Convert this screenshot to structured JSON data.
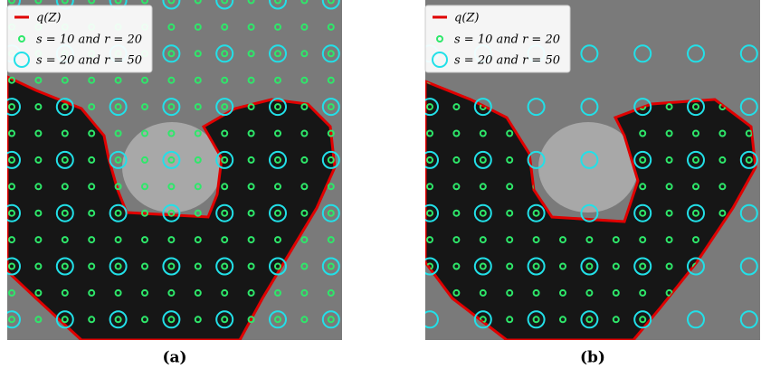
{
  "panels": [
    {
      "caption": "(a)",
      "legend": [
        "q(Z)",
        "s = 10 and r = 20",
        "s = 20 and r = 50"
      ]
    },
    {
      "caption": "(b)",
      "legend": [
        "q(Z)",
        "s = 10 and r = 20",
        "s = 20 and r = 50"
      ]
    }
  ]
}
